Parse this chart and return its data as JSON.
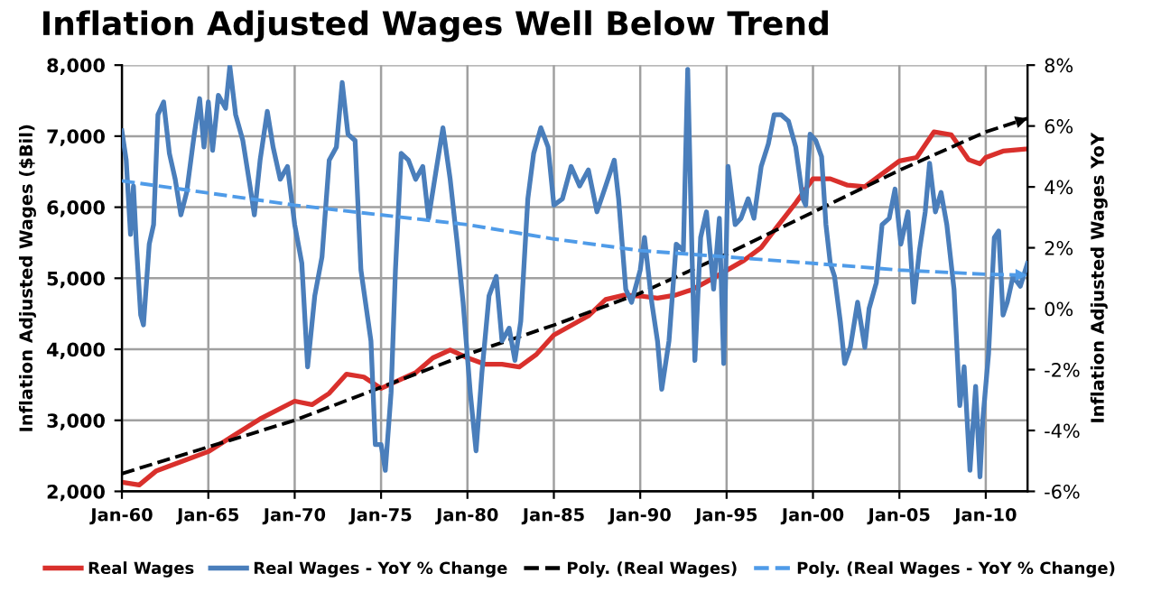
{
  "chart_data": {
    "type": "line",
    "title": "Inflation Adjusted Wages Well Below Trend",
    "ylabel": "Inflation Adjusted Wages ($Bil)",
    "y2label": "Inflation Adjusted Wages YoY",
    "xlim": [
      "1960-01",
      "2012-06"
    ],
    "xticks": [
      {
        "value": "1960-01",
        "label": "Jan-60"
      },
      {
        "value": "1965-01",
        "label": "Jan-65"
      },
      {
        "value": "1970-01",
        "label": "Jan-70"
      },
      {
        "value": "1975-01",
        "label": "Jan-75"
      },
      {
        "value": "1980-01",
        "label": "Jan-80"
      },
      {
        "value": "1985-01",
        "label": "Jan-85"
      },
      {
        "value": "1990-01",
        "label": "Jan-90"
      },
      {
        "value": "1995-01",
        "label": "Jan-95"
      },
      {
        "value": "2000-01",
        "label": "Jan-00"
      },
      {
        "value": "2005-01",
        "label": "Jan-05"
      },
      {
        "value": "2010-01",
        "label": "Jan-10"
      }
    ],
    "ylim": [
      2000,
      8000
    ],
    "yticks": [
      {
        "value": 2000,
        "label": "2,000"
      },
      {
        "value": 3000,
        "label": "3,000"
      },
      {
        "value": 4000,
        "label": "4,000"
      },
      {
        "value": 5000,
        "label": "5,000"
      },
      {
        "value": 6000,
        "label": "6,000"
      },
      {
        "value": 7000,
        "label": "7,000"
      },
      {
        "value": 8000,
        "label": "8,000"
      }
    ],
    "y2lim": [
      -6,
      8
    ],
    "y2ticks": [
      {
        "value": -6,
        "label": "-6%"
      },
      {
        "value": -4,
        "label": "-4%"
      },
      {
        "value": -2,
        "label": "-2%"
      },
      {
        "value": 0,
        "label": "0%"
      },
      {
        "value": 2,
        "label": "2%"
      },
      {
        "value": 4,
        "label": "4%"
      },
      {
        "value": 6,
        "label": "6%"
      },
      {
        "value": 8,
        "label": "8%"
      }
    ],
    "grid": true,
    "legend": "bottom",
    "marker": "none",
    "series": [
      {
        "name": "Real Wages",
        "color": "#d9302c",
        "line_style": "solid",
        "x": [
          "1960-01",
          "1961-01",
          "1962-01",
          "1965-01",
          "1968-01",
          "1970-01",
          "1971-01",
          "1972-01",
          "1973-01",
          "1974-01",
          "1975-01",
          "1976-01",
          "1977-01",
          "1978-01",
          "1979-01",
          "1980-01",
          "1981-01",
          "1982-01",
          "1983-01",
          "1984-01",
          "1985-01",
          "1987-01",
          "1988-01",
          "1989-01",
          "1990-01",
          "1991-01",
          "1992-01",
          "1993-01",
          "1994-01",
          "1995-01",
          "1996-01",
          "1997-01",
          "1998-01",
          "1999-01",
          "2000-01",
          "2001-01",
          "2002-01",
          "2003-01",
          "2004-01",
          "2005-01",
          "2006-01",
          "2007-01",
          "2008-01",
          "2008-07",
          "2009-01",
          "2009-09",
          "2010-01",
          "2011-01",
          "2012-06"
        ],
        "values": [
          2130,
          2090,
          2290,
          2560,
          3020,
          3270,
          3220,
          3380,
          3650,
          3610,
          3450,
          3560,
          3670,
          3880,
          3990,
          3880,
          3790,
          3790,
          3750,
          3930,
          4200,
          4470,
          4700,
          4760,
          4750,
          4720,
          4760,
          4840,
          4970,
          5110,
          5250,
          5430,
          5750,
          6060,
          6400,
          6400,
          6310,
          6290,
          6470,
          6650,
          6700,
          7060,
          7020,
          6850,
          6670,
          6610,
          6700,
          6790,
          6820
        ]
      },
      {
        "name": "Real Wages - YoY % Change",
        "color": "#4a7ebb",
        "line_style": "solid",
        "axis": "y2",
        "x": [
          "1960-01",
          "1960-04",
          "1960-07",
          "1960-09",
          "1960-11",
          "1961-02",
          "1961-04",
          "1961-08",
          "1961-11",
          "1962-02",
          "1962-06",
          "1962-10",
          "1963-02",
          "1963-06",
          "1963-10",
          "1964-03",
          "1964-07",
          "1964-10",
          "1965-01",
          "1965-04",
          "1965-08",
          "1966-01",
          "1966-04",
          "1966-08",
          "1967-01",
          "1967-06",
          "1967-09",
          "1968-01",
          "1968-06",
          "1968-10",
          "1969-03",
          "1969-08",
          "1970-01",
          "1970-06",
          "1970-10",
          "1971-03",
          "1971-08",
          "1972-01",
          "1972-06",
          "1972-10",
          "1973-02",
          "1973-07",
          "1973-11",
          "1974-06",
          "1974-09",
          "1975-01",
          "1975-04",
          "1975-08",
          "1975-11",
          "1976-03",
          "1976-08",
          "1977-01",
          "1977-06",
          "1977-10",
          "1978-03",
          "1978-08",
          "1979-01",
          "1979-06",
          "1979-10",
          "1980-03",
          "1980-07",
          "1980-11",
          "1981-04",
          "1981-09",
          "1982-01",
          "1982-06",
          "1982-10",
          "1983-02",
          "1983-07",
          "1983-11",
          "1984-04",
          "1984-09",
          "1985-01",
          "1985-07",
          "1986-01",
          "1986-07",
          "1987-01",
          "1987-07",
          "1988-01",
          "1988-07",
          "1988-10",
          "1989-03",
          "1989-07",
          "1990-01",
          "1990-04",
          "1990-09",
          "1991-01",
          "1991-04",
          "1991-09",
          "1992-02",
          "1992-07",
          "1992-10",
          "1993-01",
          "1993-03",
          "1993-07",
          "1993-11",
          "1994-04",
          "1994-08",
          "1994-11",
          "1995-02",
          "1995-07",
          "1995-11",
          "1996-04",
          "1996-08",
          "1997-01",
          "1997-06",
          "1997-10",
          "1998-03",
          "1998-08",
          "1999-01",
          "1999-06",
          "1999-08",
          "1999-11",
          "2000-03",
          "2000-07",
          "2000-10",
          "2001-01",
          "2001-04",
          "2001-08",
          "2001-11",
          "2002-03",
          "2002-08",
          "2003-01",
          "2003-04",
          "2003-09",
          "2004-01",
          "2004-06",
          "2004-10",
          "2005-02",
          "2005-07",
          "2005-11",
          "2006-03",
          "2006-07",
          "2006-10",
          "2007-02",
          "2007-06",
          "2007-10",
          "2008-03",
          "2008-07",
          "2008-10",
          "2009-02",
          "2009-06",
          "2009-09",
          "2009-11",
          "2010-03",
          "2010-07",
          "2010-10",
          "2011-01",
          "2011-04",
          "2011-08",
          "2012-01",
          "2012-06"
        ],
        "values": [
          5.84,
          4.88,
          2.44,
          4.03,
          2.12,
          -0.21,
          -0.53,
          2.12,
          2.76,
          6.37,
          6.79,
          5.1,
          4.25,
          3.08,
          3.82,
          5.63,
          6.9,
          5.31,
          6.79,
          5.2,
          7.01,
          6.58,
          7.96,
          6.37,
          5.52,
          4.03,
          3.08,
          4.88,
          6.48,
          5.31,
          4.25,
          4.67,
          2.76,
          1.49,
          -1.91,
          0.42,
          1.7,
          4.88,
          5.31,
          7.43,
          5.73,
          5.52,
          1.27,
          -1.06,
          -4.46,
          -4.46,
          -5.31,
          -2.76,
          1.27,
          5.1,
          4.88,
          4.25,
          4.67,
          2.97,
          4.46,
          5.94,
          4.25,
          2.12,
          0.21,
          -2.76,
          -4.67,
          -2.12,
          0.42,
          1.06,
          -1.06,
          -0.64,
          -1.7,
          -0.42,
          3.61,
          5.1,
          5.94,
          5.31,
          3.4,
          3.61,
          4.67,
          4.03,
          4.56,
          3.18,
          4.03,
          4.88,
          3.61,
          0.64,
          0.21,
          1.27,
          2.34,
          0.21,
          -1.06,
          -2.65,
          -1.06,
          2.12,
          1.91,
          7.86,
          1.7,
          -1.7,
          2.34,
          3.18,
          0.64,
          2.97,
          -1.8,
          4.67,
          2.76,
          2.97,
          3.61,
          2.97,
          4.67,
          5.41,
          6.37,
          6.37,
          6.16,
          5.31,
          3.61,
          3.4,
          5.73,
          5.52,
          4.99,
          2.76,
          1.49,
          1.06,
          -0.42,
          -1.8,
          -1.27,
          0.21,
          -1.27,
          0.0,
          0.85,
          2.76,
          2.97,
          3.93,
          2.12,
          3.18,
          0.21,
          1.91,
          3.18,
          4.78,
          3.18,
          3.82,
          2.76,
          0.64,
          -3.18,
          -1.91,
          -5.31,
          -2.55,
          -5.52,
          -3.61,
          -1.49,
          2.34,
          2.55,
          -0.21,
          0.21,
          1.06,
          0.74,
          1.49
        ]
      },
      {
        "name": "Poly. (Real Wages)",
        "color": "#000000",
        "line_style": "dashed",
        "x": [
          "1960-01",
          "1970-01",
          "1980-01",
          "1985-01",
          "1990-01",
          "1995-01",
          "2000-01",
          "2005-01",
          "2010-01",
          "2012-06"
        ],
        "values": [
          2250,
          3000,
          3930,
          4340,
          4790,
          5340,
          5930,
          6520,
          7060,
          7250
        ]
      },
      {
        "name": "Poly. (Real Wages - YoY % Change)",
        "color": "#4f9be8",
        "line_style": "dashed",
        "axis": "y2",
        "x": [
          "1960-01",
          "1970-01",
          "1980-01",
          "1985-01",
          "1990-01",
          "1995-01",
          "2000-01",
          "2005-01",
          "2010-01",
          "2012-06"
        ],
        "values": [
          4.2,
          3.4,
          2.76,
          2.29,
          1.91,
          1.7,
          1.49,
          1.27,
          1.13,
          1.1
        ]
      }
    ]
  }
}
